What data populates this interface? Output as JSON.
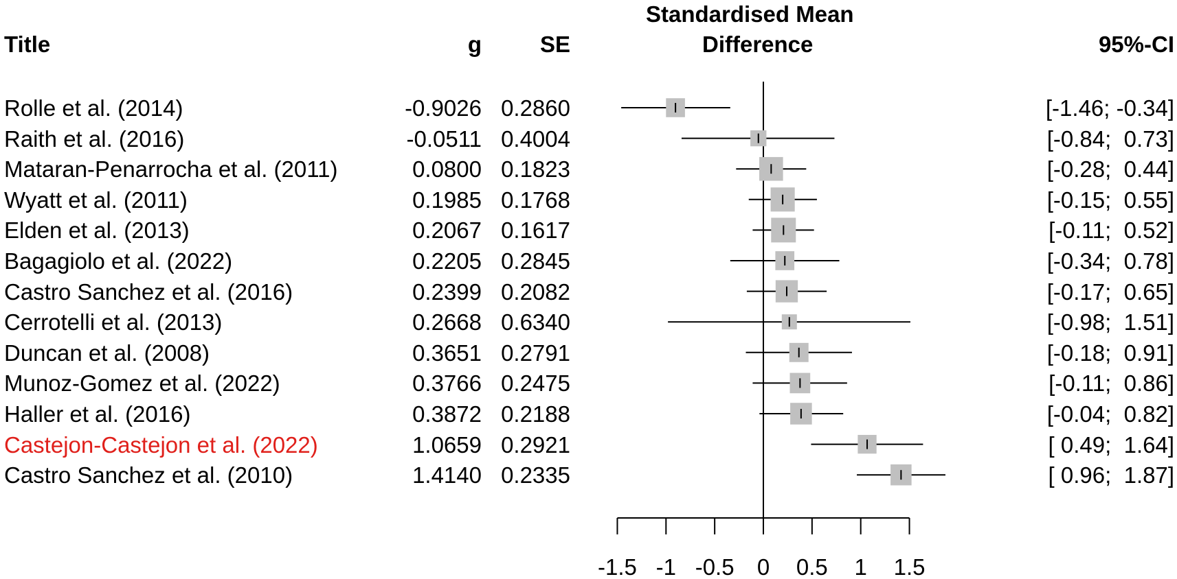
{
  "headers": {
    "title": "Title",
    "g": "g",
    "se": "SE",
    "plot_line1": "Standardised Mean",
    "plot_line2": "Difference",
    "ci": "95%-CI"
  },
  "colors": {
    "box": "#c0c0c0",
    "line": "#000000",
    "highlight": "#e0201b"
  },
  "chart_data": {
    "type": "forest",
    "title": "Standardised Mean Difference",
    "xlabel": "",
    "ylabel": "",
    "xlim": [
      -1.5,
      1.5
    ],
    "xticks": [
      -1.5,
      -1,
      -0.5,
      0,
      0.5,
      1,
      1.5
    ],
    "xtick_labels": [
      "-1.5",
      "-1",
      "-0.5",
      "0",
      "0.5",
      "1",
      "1.5"
    ],
    "reference_line": 0,
    "studies": [
      {
        "title": "Rolle et al. (2014)",
        "g": -0.9026,
        "se": 0.286,
        "g_text": "-0.9026",
        "se_text": "0.2860",
        "lo": -1.46,
        "hi": -0.34,
        "ci_text": "[-1.46; -0.34]",
        "highlight": false
      },
      {
        "title": "Raith et al. (2016)",
        "g": -0.0511,
        "se": 0.4004,
        "g_text": "-0.0511",
        "se_text": "0.4004",
        "lo": -0.84,
        "hi": 0.73,
        "ci_text": "[-0.84;  0.73]",
        "highlight": false
      },
      {
        "title": "Mataran-Penarrocha et al. (2011)",
        "g": 0.08,
        "se": 0.1823,
        "g_text": "0.0800",
        "se_text": "0.1823",
        "lo": -0.28,
        "hi": 0.44,
        "ci_text": "[-0.28;  0.44]",
        "highlight": false
      },
      {
        "title": "Wyatt et al. (2011)",
        "g": 0.1985,
        "se": 0.1768,
        "g_text": "0.1985",
        "se_text": "0.1768",
        "lo": -0.15,
        "hi": 0.55,
        "ci_text": "[-0.15;  0.55]",
        "highlight": false
      },
      {
        "title": "Elden et al. (2013)",
        "g": 0.2067,
        "se": 0.1617,
        "g_text": "0.2067",
        "se_text": "0.1617",
        "lo": -0.11,
        "hi": 0.52,
        "ci_text": "[-0.11;  0.52]",
        "highlight": false
      },
      {
        "title": "Bagagiolo et al. (2022)",
        "g": 0.2205,
        "se": 0.2845,
        "g_text": "0.2205",
        "se_text": "0.2845",
        "lo": -0.34,
        "hi": 0.78,
        "ci_text": "[-0.34;  0.78]",
        "highlight": false
      },
      {
        "title": "Castro Sanchez et al. (2016)",
        "g": 0.2399,
        "se": 0.2082,
        "g_text": "0.2399",
        "se_text": "0.2082",
        "lo": -0.17,
        "hi": 0.65,
        "ci_text": "[-0.17;  0.65]",
        "highlight": false
      },
      {
        "title": "Cerrotelli et al. (2013)",
        "g": 0.2668,
        "se": 0.634,
        "g_text": "0.2668",
        "se_text": "0.6340",
        "lo": -0.98,
        "hi": 1.51,
        "ci_text": "[-0.98;  1.51]",
        "highlight": false
      },
      {
        "title": "Duncan et al. (2008)",
        "g": 0.3651,
        "se": 0.2791,
        "g_text": "0.3651",
        "se_text": "0.2791",
        "lo": -0.18,
        "hi": 0.91,
        "ci_text": "[-0.18;  0.91]",
        "highlight": false
      },
      {
        "title": "Munoz-Gomez et al. (2022)",
        "g": 0.3766,
        "se": 0.2475,
        "g_text": "0.3766",
        "se_text": "0.2475",
        "lo": -0.11,
        "hi": 0.86,
        "ci_text": "[-0.11;  0.86]",
        "highlight": false
      },
      {
        "title": "Haller et al. (2016)",
        "g": 0.3872,
        "se": 0.2188,
        "g_text": "0.3872",
        "se_text": "0.2188",
        "lo": -0.04,
        "hi": 0.82,
        "ci_text": "[-0.04;  0.82]",
        "highlight": false
      },
      {
        "title": "Castejon-Castejon et al. (2022)",
        "g": 1.0659,
        "se": 0.2921,
        "g_text": "1.0659",
        "se_text": "0.2921",
        "lo": 0.49,
        "hi": 1.64,
        "ci_text": "[ 0.49;  1.64]",
        "highlight": true
      },
      {
        "title": "Castro Sanchez et al. (2010)",
        "g": 1.414,
        "se": 0.2335,
        "g_text": "1.4140",
        "se_text": "0.2335",
        "lo": 0.96,
        "hi": 1.87,
        "ci_text": "[ 0.96;  1.87]",
        "highlight": false
      }
    ]
  }
}
